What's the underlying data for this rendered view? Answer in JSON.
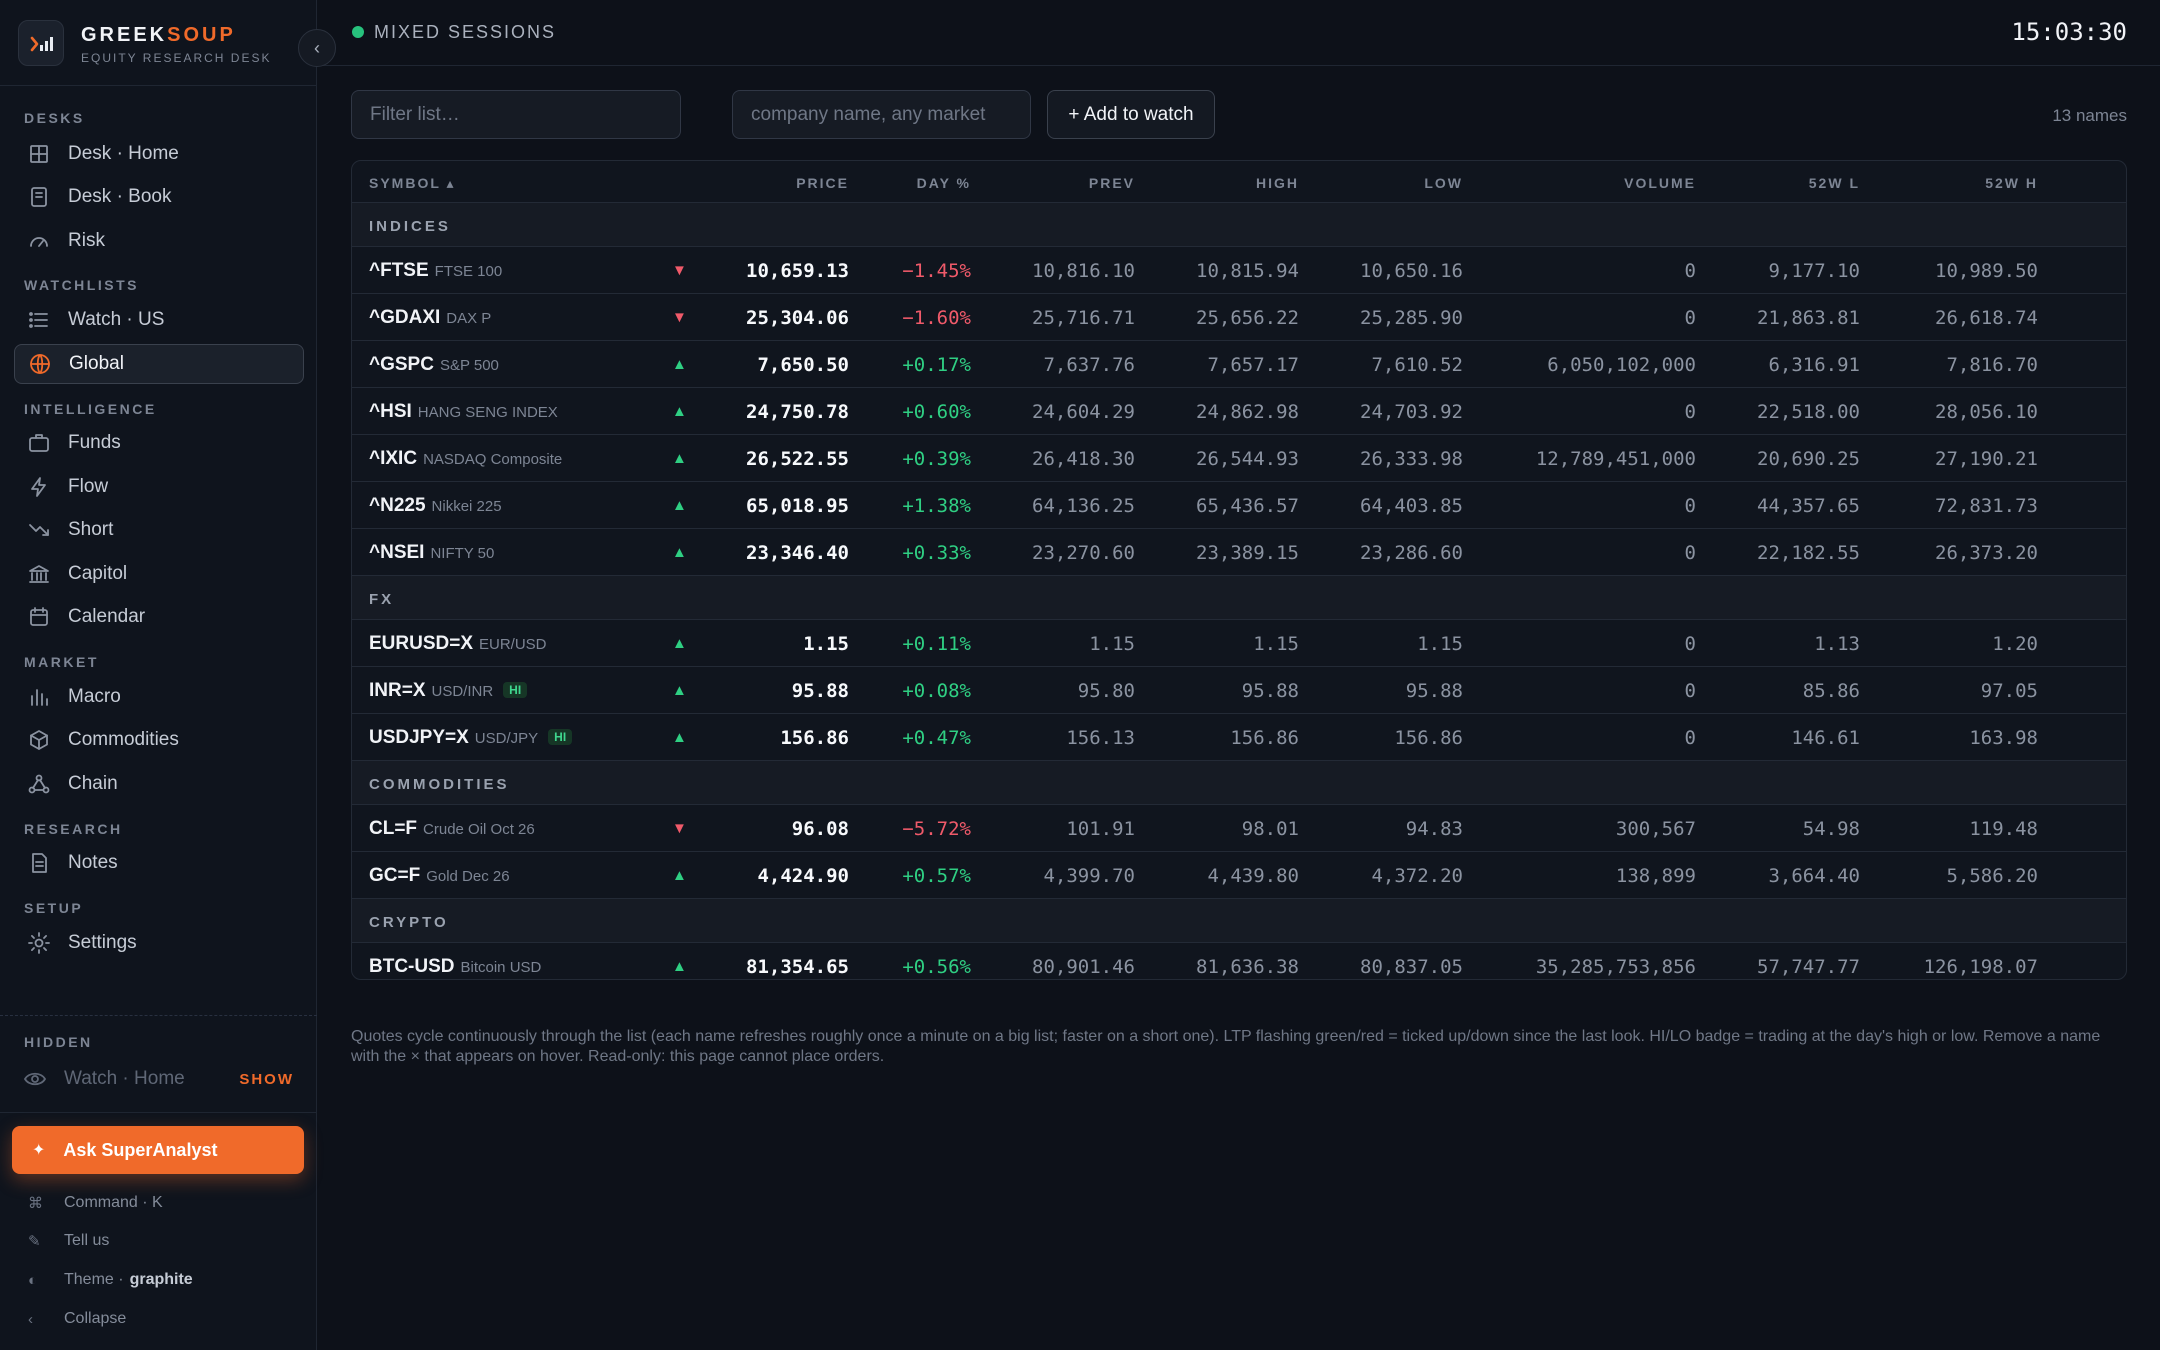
{
  "brand": {
    "name_main": "GREEK",
    "name_accent": "SOUP",
    "subtitle": "EQUITY RESEARCH DESK",
    "collapse_glyph": "‹"
  },
  "sidebar": {
    "sections": [
      {
        "label": "DESKS",
        "items": [
          {
            "label": "Desk · Home",
            "icon": "grid-icon"
          },
          {
            "label": "Desk · Book",
            "icon": "book-icon"
          },
          {
            "label": "Risk",
            "icon": "gauge-icon"
          }
        ]
      },
      {
        "label": "WATCHLISTS",
        "items": [
          {
            "label": "Watch · US",
            "icon": "list-icon"
          },
          {
            "label": "Global",
            "icon": "globe-icon",
            "active": true
          }
        ]
      },
      {
        "label": "INTELLIGENCE",
        "items": [
          {
            "label": "Funds",
            "icon": "briefcase-icon"
          },
          {
            "label": "Flow",
            "icon": "bolt-icon"
          },
          {
            "label": "Short",
            "icon": "trend-down-icon"
          },
          {
            "label": "Capitol",
            "icon": "bank-icon"
          },
          {
            "label": "Calendar",
            "icon": "calendar-icon"
          }
        ]
      },
      {
        "label": "MARKET",
        "items": [
          {
            "label": "Macro",
            "icon": "bar-chart-icon"
          },
          {
            "label": "Commodities",
            "icon": "cube-icon"
          },
          {
            "label": "Chain",
            "icon": "nodes-icon"
          }
        ]
      },
      {
        "label": "RESEARCH",
        "items": [
          {
            "label": "Notes",
            "icon": "note-icon"
          }
        ]
      },
      {
        "label": "SETUP",
        "items": [
          {
            "label": "Settings",
            "icon": "gear-icon"
          }
        ]
      }
    ],
    "hidden": {
      "label": "HIDDEN",
      "item": "Watch · Home",
      "show": "SHOW"
    },
    "ask_button": "Ask SuperAnalyst",
    "footer": [
      {
        "glyph": "⌘",
        "label": "Command · K"
      },
      {
        "glyph": "✎",
        "label": "Tell us"
      },
      {
        "glyph": "◐",
        "label": "Theme ·",
        "strong": "graphite"
      },
      {
        "glyph": "‹",
        "label": "Collapse"
      }
    ]
  },
  "topbar": {
    "session": "MIXED SESSIONS",
    "session_color": "#27c27d",
    "clock": "15:03:30"
  },
  "toolbar": {
    "filter_placeholder": "Filter list…",
    "add_placeholder": "company name, any market",
    "add_button": "+ Add to watch",
    "count": "13 names"
  },
  "table": {
    "columns": [
      "SYMBOL ▴",
      "PRICE",
      "DAY %",
      "PREV",
      "HIGH",
      "LOW",
      "VOLUME",
      "52W L",
      "52W H"
    ],
    "groups": [
      {
        "label": "INDICES",
        "rows": [
          {
            "sym": "^FTSE",
            "name": "FTSE 100",
            "dir": "down",
            "price": "10,659.13",
            "day": "−1.45%",
            "prev": "10,816.10",
            "high": "10,815.94",
            "low": "10,650.16",
            "vol": "0",
            "l52": "9,177.10",
            "h52": "10,989.50"
          },
          {
            "sym": "^GDAXI",
            "name": "DAX P",
            "dir": "down",
            "price": "25,304.06",
            "day": "−1.60%",
            "prev": "25,716.71",
            "high": "25,656.22",
            "low": "25,285.90",
            "vol": "0",
            "l52": "21,863.81",
            "h52": "26,618.74"
          },
          {
            "sym": "^GSPC",
            "name": "S&P 500",
            "dir": "up",
            "price": "7,650.50",
            "day": "+0.17%",
            "prev": "7,637.76",
            "high": "7,657.17",
            "low": "7,610.52",
            "vol": "6,050,102,000",
            "l52": "6,316.91",
            "h52": "7,816.70"
          },
          {
            "sym": "^HSI",
            "name": "HANG SENG INDEX",
            "dir": "up",
            "price": "24,750.78",
            "day": "+0.60%",
            "prev": "24,604.29",
            "high": "24,862.98",
            "low": "24,703.92",
            "vol": "0",
            "l52": "22,518.00",
            "h52": "28,056.10"
          },
          {
            "sym": "^IXIC",
            "name": "NASDAQ Composite",
            "dir": "up",
            "price": "26,522.55",
            "day": "+0.39%",
            "prev": "26,418.30",
            "high": "26,544.93",
            "low": "26,333.98",
            "vol": "12,789,451,000",
            "l52": "20,690.25",
            "h52": "27,190.21"
          },
          {
            "sym": "^N225",
            "name": "Nikkei 225",
            "dir": "up",
            "price": "65,018.95",
            "day": "+1.38%",
            "prev": "64,136.25",
            "high": "65,436.57",
            "low": "64,403.85",
            "vol": "0",
            "l52": "44,357.65",
            "h52": "72,831.73"
          },
          {
            "sym": "^NSEI",
            "name": "NIFTY 50",
            "dir": "up",
            "price": "23,346.40",
            "day": "+0.33%",
            "prev": "23,270.60",
            "high": "23,389.15",
            "low": "23,286.60",
            "vol": "0",
            "l52": "22,182.55",
            "h52": "26,373.20"
          }
        ]
      },
      {
        "label": "FX",
        "rows": [
          {
            "sym": "EURUSD=X",
            "name": "EUR/USD",
            "dir": "up",
            "price": "1.15",
            "day": "+0.11%",
            "prev": "1.15",
            "high": "1.15",
            "low": "1.15",
            "vol": "0",
            "l52": "1.13",
            "h52": "1.20"
          },
          {
            "sym": "INR=X",
            "name": "USD/INR",
            "badge": "HI",
            "dir": "up",
            "price": "95.88",
            "day": "+0.08%",
            "prev": "95.80",
            "high": "95.88",
            "low": "95.88",
            "vol": "0",
            "l52": "85.86",
            "h52": "97.05"
          },
          {
            "sym": "USDJPY=X",
            "name": "USD/JPY",
            "badge": "HI",
            "dir": "up",
            "price": "156.86",
            "day": "+0.47%",
            "prev": "156.13",
            "high": "156.86",
            "low": "156.86",
            "vol": "0",
            "l52": "146.61",
            "h52": "163.98"
          }
        ]
      },
      {
        "label": "COMMODITIES",
        "rows": [
          {
            "sym": "CL=F",
            "name": "Crude Oil Oct 26",
            "dir": "down",
            "price": "96.08",
            "day": "−5.72%",
            "prev": "101.91",
            "high": "98.01",
            "low": "94.83",
            "vol": "300,567",
            "l52": "54.98",
            "h52": "119.48"
          },
          {
            "sym": "GC=F",
            "name": "Gold Dec 26",
            "dir": "up",
            "price": "4,424.90",
            "day": "+0.57%",
            "prev": "4,399.70",
            "high": "4,439.80",
            "low": "4,372.20",
            "vol": "138,899",
            "l52": "3,664.40",
            "h52": "5,586.20"
          }
        ]
      },
      {
        "label": "CRYPTO",
        "rows": [
          {
            "sym": "BTC-USD",
            "name": "Bitcoin USD",
            "dir": "up",
            "price": "81,354.65",
            "day": "+0.56%",
            "prev": "80,901.46",
            "high": "81,636.38",
            "low": "80,837.05",
            "vol": "35,285,753,856",
            "l52": "57,747.77",
            "h52": "126,198.07"
          }
        ]
      }
    ]
  },
  "footnote": "Quotes cycle continuously through the list (each name refreshes roughly once a minute on a big list; faster on a short one). LTP flashing green/red = ticked up/down since the last look. HI/LO badge = trading at the day's high or low. Remove a name with the × that appears on hover. Read-only: this page cannot place orders."
}
